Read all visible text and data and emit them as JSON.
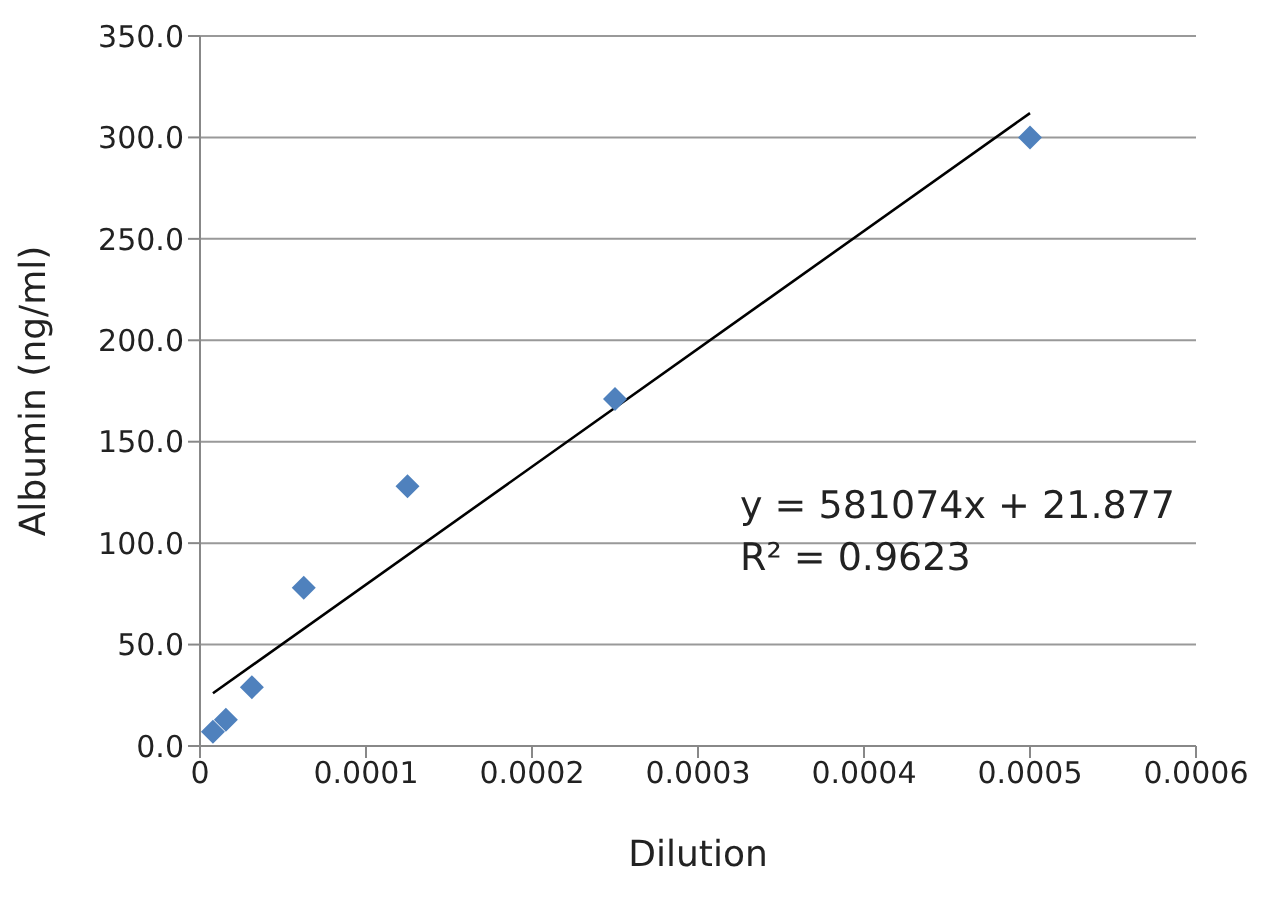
{
  "chart_data": {
    "type": "scatter",
    "xlabel": "Dilution",
    "ylabel": "Albumin (ng/ml)",
    "series": [
      {
        "color": "#4f81bd",
        "marker": "diamond",
        "x": [
          7.8e-06,
          1.56e-05,
          3.125e-05,
          6.25e-05,
          0.000125,
          0.00025,
          0.0005
        ],
        "values": [
          7,
          13,
          29,
          78,
          128,
          171,
          300
        ]
      },
      {
        "type": "line",
        "color": "#000000",
        "marker": "none",
        "x": [
          7.8e-06,
          0.0005
        ],
        "values": [
          26,
          312
        ]
      }
    ],
    "xlim": [
      0,
      0.0006
    ],
    "xticks": [
      0,
      0.0001,
      0.0002,
      0.0003,
      0.0004,
      0.0005,
      0.0006
    ],
    "ylim": [
      0,
      350
    ],
    "yticks": [
      {
        "value": 0,
        "label": "0.0"
      },
      {
        "value": 50,
        "label": "50.0"
      },
      {
        "value": 100,
        "label": "100.0"
      },
      {
        "value": 150,
        "label": "150.0"
      },
      {
        "value": 200,
        "label": "200.0"
      },
      {
        "value": 250,
        "label": "250.0"
      },
      {
        "value": 300,
        "label": "300.0"
      },
      {
        "value": 350,
        "label": "350.0"
      }
    ],
    "grid": "y",
    "annotations": [
      "y = 581074x + 21.877",
      "R² = 0.9623"
    ]
  }
}
